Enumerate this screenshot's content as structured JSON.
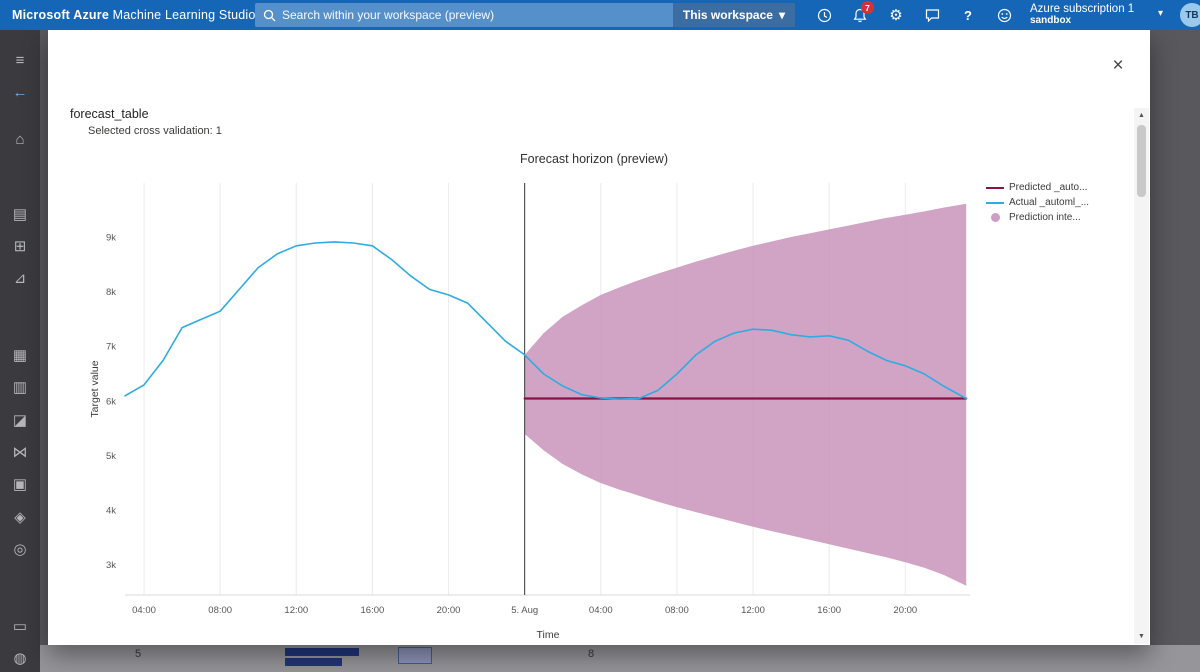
{
  "topbar": {
    "title_bold": "Microsoft Azure",
    "title_rest": " Machine Learning Studio",
    "search_placeholder": "Search within your workspace (preview)",
    "scope_label": "This workspace",
    "notification_count": "7",
    "subscription_line1": "Azure subscription 1",
    "subscription_line2": "sandbox",
    "avatar_initials": "TB",
    "icons": {
      "gear": "⚙",
      "help": "?",
      "chevron": "▾"
    }
  },
  "sidebar": {
    "items": [
      {
        "name": "menu",
        "glyph": "≡"
      },
      {
        "name": "back",
        "glyph": "←",
        "color": "#6aa9e8"
      },
      {
        "name": "home",
        "glyph": "⌂"
      },
      {
        "name": "notebooks",
        "glyph": "▤"
      },
      {
        "name": "automl",
        "glyph": "⊞"
      },
      {
        "name": "designer",
        "glyph": "⊿"
      },
      {
        "name": "data",
        "glyph": "▦"
      },
      {
        "name": "jobs",
        "glyph": "▥"
      },
      {
        "name": "components",
        "glyph": "◪"
      },
      {
        "name": "pipelines",
        "glyph": "⋈"
      },
      {
        "name": "environments",
        "glyph": "▣"
      },
      {
        "name": "models",
        "glyph": "◈"
      },
      {
        "name": "endpoints",
        "glyph": "◎"
      },
      {
        "name": "compute",
        "glyph": "▭"
      },
      {
        "name": "linked-services",
        "glyph": "◍"
      }
    ]
  },
  "modal": {
    "title": "forecast_table",
    "subtitle": "Selected cross validation: 1",
    "close_glyph": "×"
  },
  "scrollbar": {
    "up": "▲",
    "down": "▼"
  },
  "background_strip": {
    "left_value": "5",
    "right_value": "8"
  },
  "chart_data": {
    "type": "line",
    "title": "Forecast horizon (preview)",
    "xlabel": "Time",
    "ylabel": "Target value",
    "x_range": [
      3,
      47.4
    ],
    "y_range": [
      2450,
      10000
    ],
    "forecast_start_hour": 24,
    "x_ticks": [
      {
        "hour": 4,
        "label": "04:00"
      },
      {
        "hour": 8,
        "label": "08:00"
      },
      {
        "hour": 12,
        "label": "12:00"
      },
      {
        "hour": 16,
        "label": "16:00"
      },
      {
        "hour": 20,
        "label": "20:00"
      },
      {
        "hour": 24,
        "label": "5. Aug"
      },
      {
        "hour": 28,
        "label": "04:00"
      },
      {
        "hour": 32,
        "label": "08:00"
      },
      {
        "hour": 36,
        "label": "12:00"
      },
      {
        "hour": 40,
        "label": "16:00"
      },
      {
        "hour": 44,
        "label": "20:00"
      }
    ],
    "y_ticks": [
      {
        "value": 3000,
        "label": "3k"
      },
      {
        "value": 4000,
        "label": "4k"
      },
      {
        "value": 5000,
        "label": "5k"
      },
      {
        "value": 6000,
        "label": "6k"
      },
      {
        "value": 7000,
        "label": "7k"
      },
      {
        "value": 8000,
        "label": "8k"
      },
      {
        "value": 9000,
        "label": "9k"
      }
    ],
    "legend": [
      {
        "label": "Predicted _auto...",
        "color": "#8a1144",
        "swatch": "line"
      },
      {
        "label": "Actual _automl_...",
        "color": "#2fabe1",
        "swatch": "line"
      },
      {
        "label": "Prediction inte...",
        "color": "#cf9ec6",
        "swatch": "dot"
      }
    ],
    "series": [
      {
        "name": "PredictionInterval",
        "type": "band",
        "color": "#c994bc",
        "opacity": 0.85,
        "upper": [
          [
            24,
            6850
          ],
          [
            25,
            7250
          ],
          [
            26,
            7550
          ],
          [
            27,
            7760
          ],
          [
            28,
            7950
          ],
          [
            29,
            8090
          ],
          [
            30,
            8220
          ],
          [
            31,
            8340
          ],
          [
            32,
            8450
          ],
          [
            33,
            8560
          ],
          [
            34,
            8660
          ],
          [
            35,
            8760
          ],
          [
            36,
            8850
          ],
          [
            37,
            8930
          ],
          [
            38,
            9010
          ],
          [
            39,
            9080
          ],
          [
            40,
            9150
          ],
          [
            41,
            9220
          ],
          [
            42,
            9290
          ],
          [
            43,
            9360
          ],
          [
            44,
            9420
          ],
          [
            45,
            9480
          ],
          [
            46,
            9550
          ],
          [
            47.2,
            9620
          ]
        ],
        "lower": [
          [
            24,
            5400
          ],
          [
            25,
            5100
          ],
          [
            26,
            4850
          ],
          [
            27,
            4660
          ],
          [
            28,
            4500
          ],
          [
            29,
            4380
          ],
          [
            30,
            4270
          ],
          [
            31,
            4160
          ],
          [
            32,
            4060
          ],
          [
            33,
            3970
          ],
          [
            34,
            3880
          ],
          [
            35,
            3790
          ],
          [
            36,
            3700
          ],
          [
            37,
            3620
          ],
          [
            38,
            3540
          ],
          [
            39,
            3460
          ],
          [
            40,
            3380
          ],
          [
            41,
            3300
          ],
          [
            42,
            3220
          ],
          [
            43,
            3140
          ],
          [
            44,
            3050
          ],
          [
            45,
            2950
          ],
          [
            46,
            2820
          ],
          [
            47.2,
            2620
          ]
        ]
      },
      {
        "name": "Predicted",
        "type": "line",
        "color": "#8a1144",
        "width": 2.2,
        "points": [
          [
            24,
            6050
          ],
          [
            47.2,
            6050
          ]
        ]
      },
      {
        "name": "Actual",
        "type": "line",
        "color": "#2fabe1",
        "width": 1.6,
        "points": [
          [
            3,
            6100
          ],
          [
            4,
            6300
          ],
          [
            5,
            6750
          ],
          [
            6,
            7350
          ],
          [
            7,
            7500
          ],
          [
            8,
            7650
          ],
          [
            9,
            8050
          ],
          [
            10,
            8450
          ],
          [
            11,
            8700
          ],
          [
            12,
            8850
          ],
          [
            13,
            8900
          ],
          [
            14,
            8920
          ],
          [
            15,
            8900
          ],
          [
            16,
            8850
          ],
          [
            17,
            8600
          ],
          [
            18,
            8300
          ],
          [
            19,
            8050
          ],
          [
            20,
            7950
          ],
          [
            21,
            7800
          ],
          [
            22,
            7450
          ],
          [
            23,
            7100
          ],
          [
            24,
            6850
          ],
          [
            25,
            6500
          ],
          [
            26,
            6280
          ],
          [
            27,
            6120
          ],
          [
            28,
            6060
          ],
          [
            29,
            6040
          ],
          [
            30,
            6050
          ],
          [
            31,
            6200
          ],
          [
            32,
            6500
          ],
          [
            33,
            6850
          ],
          [
            34,
            7100
          ],
          [
            35,
            7250
          ],
          [
            36,
            7320
          ],
          [
            37,
            7300
          ],
          [
            38,
            7220
          ],
          [
            39,
            7180
          ],
          [
            40,
            7200
          ],
          [
            41,
            7120
          ],
          [
            42,
            6920
          ],
          [
            43,
            6750
          ],
          [
            44,
            6650
          ],
          [
            45,
            6500
          ],
          [
            46,
            6280
          ],
          [
            47.2,
            6050
          ]
        ]
      }
    ]
  }
}
